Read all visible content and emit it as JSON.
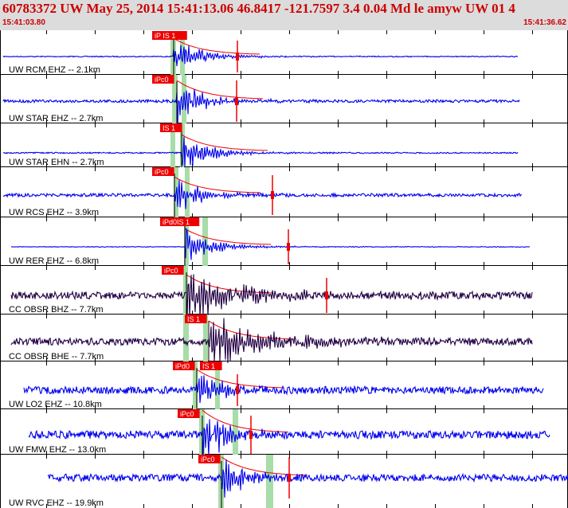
{
  "header": {
    "title": "60783372 UW May 25, 2014 15:41:13.06   46.8417 -121.7597  3.4 0.04 Md le amyw UW 01   4",
    "start_time": "15:41:03.80",
    "end_time": "15:41:36.62"
  },
  "colors": {
    "trace_blue": "#0000ee",
    "trace_dark": "#220044",
    "pick_red": "#ee0000",
    "window_green": "#a8dca8",
    "header_bg": "#dcdcdc",
    "label_text": "#000000"
  },
  "traces": [
    {
      "label": "UW RCM EHZ -- 2.1km",
      "picks": [
        "iP IS 1"
      ],
      "color": "blue"
    },
    {
      "label": "UW STAR EHZ -- 2.7km",
      "picks": [
        "iPc0"
      ],
      "color": "blue"
    },
    {
      "label": "UW STAR EHN -- 2.7km",
      "picks": [
        "IS 1"
      ],
      "color": "blue"
    },
    {
      "label": "UW RCS EHZ -- 3.9km",
      "picks": [
        "iPc0"
      ],
      "color": "blue"
    },
    {
      "label": "UW RER EHZ -- 6.8km",
      "picks": [
        "iPd0IS 1"
      ],
      "color": "blue"
    },
    {
      "label": "CC OBSR BHZ -- 7.7km",
      "picks": [
        "iPc0"
      ],
      "color": "dark"
    },
    {
      "label": "CC OBSR BHE -- 7.7km",
      "picks": [
        "IS 1"
      ],
      "color": "dark"
    },
    {
      "label": "UW LO2 EHZ -- 10.8km",
      "picks": [
        "iPd0",
        "IS 1"
      ],
      "color": "blue"
    },
    {
      "label": "UW FMW EHZ -- 13.0km",
      "picks": [
        "iPc0"
      ],
      "color": "blue"
    },
    {
      "label": "UW RVC EHZ -- 19.9km",
      "picks": [
        "iPc0"
      ],
      "color": "blue"
    }
  ]
}
